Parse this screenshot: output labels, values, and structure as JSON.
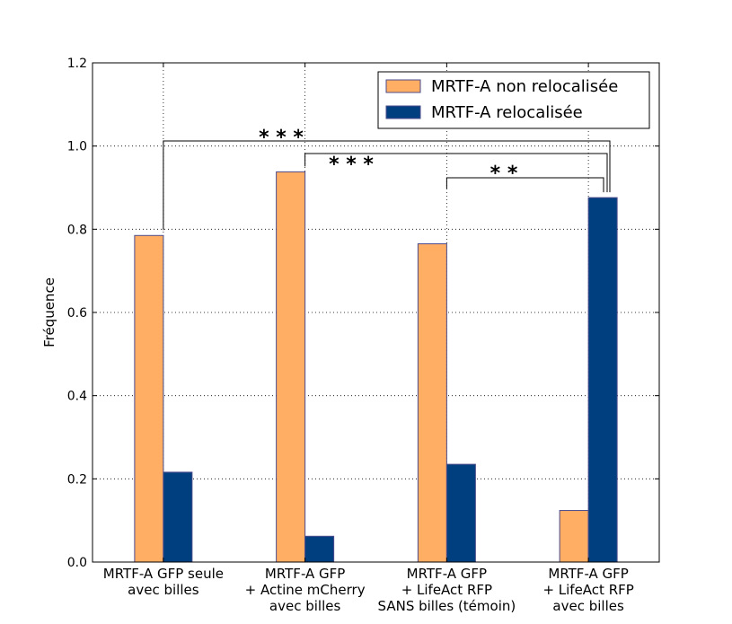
{
  "chart_data": {
    "type": "bar",
    "title": "",
    "xlabel": "",
    "ylabel": "Fréquence",
    "ylim": [
      0,
      1.2
    ],
    "yticks": [
      "0.0",
      "0.2",
      "0.4",
      "0.6",
      "0.8",
      "1.0",
      "1.2"
    ],
    "grid": true,
    "legend_position": "top-right",
    "categories": [
      [
        "MRTF-A GFP seule",
        "avec billes"
      ],
      [
        "MRTF-A GFP",
        "+ Actine mCherry",
        "avec billes"
      ],
      [
        "MRTF-A GFP",
        "+ LifeAct RFP",
        "SANS billes (témoin)"
      ],
      [
        "MRTF-A GFP",
        "+ LifeAct RFP",
        "avec billes"
      ]
    ],
    "series": [
      {
        "name": "MRTF-A non relocalisée",
        "color": "#ffae64",
        "values": [
          0.785,
          0.938,
          0.765,
          0.124
        ]
      },
      {
        "name": "MRTF-A relocalisée",
        "color": "#003f7f",
        "values": [
          0.216,
          0.062,
          0.235,
          0.876
        ]
      }
    ],
    "significance": [
      {
        "from": 0,
        "to": 3,
        "label": "* * *"
      },
      {
        "from": 1,
        "to": 3,
        "label": "* * *"
      },
      {
        "from": 2,
        "to": 3,
        "label": "* *"
      }
    ]
  }
}
